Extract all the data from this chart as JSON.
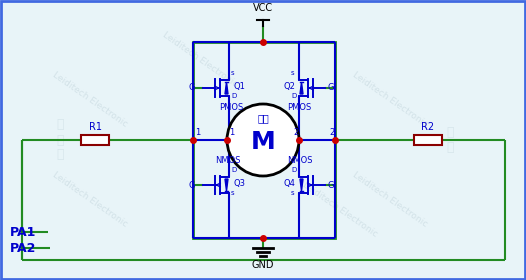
{
  "bg_color": "#e8f4f8",
  "border_color": "#4169e1",
  "wire_color": "#228B22",
  "component_color": "#0000cc",
  "resistor_color": "#8B0000",
  "dot_color": "#cc0000",
  "vcc_label": "VCC",
  "gnd_label": "GND",
  "motor_label": "M",
  "motor_sublabel": "马达",
  "q1_label": "Q1",
  "q2_label": "Q2",
  "q3_label": "Q3",
  "q4_label": "Q4",
  "pmos1_label": "PMOS",
  "pmos2_label": "PMOS",
  "nmos1_label": "NMOS",
  "nmos2_label": "NMOS",
  "r1_label": "R1",
  "r2_label": "R2",
  "pa1_label": "PA1",
  "pa2_label": "PA2",
  "g_label": "G",
  "s_label": "s",
  "d_label": "D",
  "node1_label": "1",
  "node2_label": "2",
  "fig_w": 5.26,
  "fig_h": 2.8,
  "dpi": 100
}
